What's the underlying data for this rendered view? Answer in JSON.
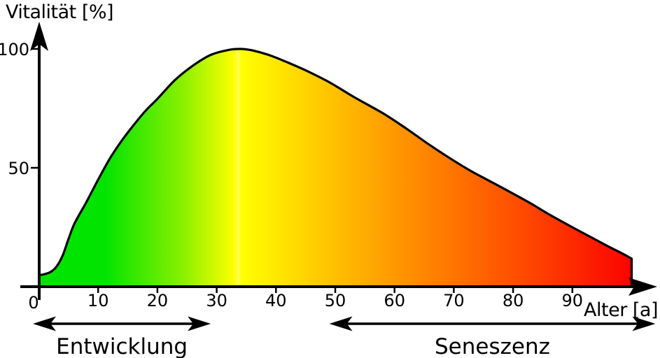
{
  "chart_data": {
    "type": "area",
    "title": "",
    "ylabel": "Vitalität [%]",
    "xlabel": "Alter [a]",
    "origin_label": "0",
    "xlim": [
      0,
      100
    ],
    "ylim": [
      0,
      100
    ],
    "x_ticks": [
      10,
      20,
      30,
      40,
      50,
      60,
      70,
      80,
      90
    ],
    "y_ticks": [
      50,
      100
    ],
    "grid": false,
    "legend": "none",
    "curve_color": "#000000",
    "background": "#ffffff",
    "gradient_stops": [
      {
        "pos": 0.0,
        "color": "#00e400"
      },
      {
        "pos": 0.11,
        "color": "#00e400"
      },
      {
        "pos": 0.245,
        "color": "#8cf000"
      },
      {
        "pos": 0.33,
        "color": "#ffff00"
      },
      {
        "pos": 0.336,
        "color": "#ffff60"
      },
      {
        "pos": 0.342,
        "color": "#ffff00"
      },
      {
        "pos": 0.6,
        "color": "#ff9800"
      },
      {
        "pos": 0.8,
        "color": "#ff5000"
      },
      {
        "pos": 1.0,
        "color": "#fb0300"
      }
    ],
    "points": [
      [
        0,
        4.8
      ],
      [
        1,
        5.3
      ],
      [
        2,
        6.2
      ],
      [
        3,
        8.5
      ],
      [
        4,
        13
      ],
      [
        5,
        20
      ],
      [
        6,
        26.5
      ],
      [
        8,
        35.5
      ],
      [
        10,
        45
      ],
      [
        12,
        54
      ],
      [
        14,
        61.5
      ],
      [
        16,
        68
      ],
      [
        18,
        74
      ],
      [
        20,
        79
      ],
      [
        23,
        87
      ],
      [
        26,
        93
      ],
      [
        29,
        97.5
      ],
      [
        32,
        99.6
      ],
      [
        34,
        100
      ],
      [
        36,
        99.4
      ],
      [
        39,
        97.3
      ],
      [
        42,
        94.3
      ],
      [
        45,
        91
      ],
      [
        49,
        86
      ],
      [
        53,
        80
      ],
      [
        58,
        73
      ],
      [
        62,
        66.5
      ],
      [
        66,
        59.5
      ],
      [
        70,
        53
      ],
      [
        73,
        48.5
      ],
      [
        76,
        44.5
      ],
      [
        79,
        40.5
      ],
      [
        83,
        35
      ],
      [
        86,
        30.5
      ],
      [
        90,
        25
      ],
      [
        93,
        21
      ],
      [
        96,
        17
      ],
      [
        98,
        14.5
      ],
      [
        100,
        11.8
      ]
    ],
    "peak": {
      "age": 34,
      "vitality": 100
    },
    "end_drop_to_zero": true,
    "annotations": [
      {
        "label": "Entwicklung",
        "from": -1,
        "to": 29
      },
      {
        "label": "Seneszenz",
        "from": 49,
        "to": 104
      }
    ]
  }
}
